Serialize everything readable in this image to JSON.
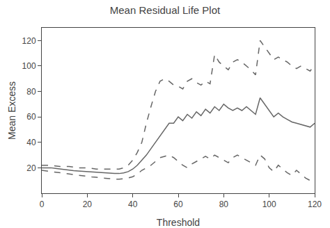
{
  "chart_data": {
    "type": "line",
    "title": "Mean Residual Life Plot",
    "xlabel": "Threshold",
    "ylabel": "Mean Excess",
    "x": [
      0,
      2,
      4,
      6,
      8,
      10,
      12,
      14,
      16,
      18,
      20,
      22,
      24,
      26,
      28,
      30,
      32,
      34,
      36,
      38,
      40,
      42,
      44,
      46,
      48,
      50,
      52,
      54,
      56,
      58,
      60,
      62,
      64,
      66,
      68,
      70,
      72,
      74,
      76,
      78,
      80,
      82,
      84,
      86,
      88,
      90,
      92,
      94,
      96,
      98,
      100,
      102,
      104,
      106,
      108,
      110,
      112,
      114,
      116,
      118,
      120
    ],
    "series": [
      {
        "color": "#666666",
        "line_style": "solid",
        "values": [
          20,
          20,
          20,
          19.5,
          19,
          18.5,
          18,
          17.8,
          17.5,
          17.2,
          17,
          16.8,
          16.5,
          16.3,
          16,
          15.8,
          15.5,
          15.5,
          16,
          17,
          19,
          22,
          26,
          30,
          35,
          40,
          45,
          50,
          55,
          55,
          60,
          57,
          62,
          59,
          64,
          61,
          66,
          63,
          68,
          65,
          70,
          67,
          65,
          67,
          65,
          68,
          65,
          62,
          75,
          70,
          65,
          60,
          63,
          60,
          58,
          56,
          55,
          54,
          53,
          52,
          55
        ]
      },
      {
        "color": "#666666",
        "line_style": "dashed",
        "values": [
          22,
          22,
          22,
          21.5,
          21,
          21,
          21,
          20.5,
          20,
          20,
          20,
          19.5,
          19,
          19,
          19,
          19,
          19,
          19,
          20,
          22,
          26,
          32,
          40,
          55,
          68,
          80,
          88,
          90,
          88,
          85,
          84,
          82,
          88,
          90,
          87,
          85,
          88,
          86,
          109,
          103,
          100,
          97,
          103,
          105,
          103,
          100,
          97,
          93,
          120,
          115,
          110,
          105,
          107,
          105,
          103,
          100,
          98,
          100,
          98,
          96,
          101
        ]
      },
      {
        "color": "#666666",
        "line_style": "dashed",
        "values": [
          18,
          17.5,
          17,
          16.5,
          16,
          15.5,
          15,
          14.5,
          14,
          13.5,
          13,
          12.8,
          12.5,
          12,
          11.8,
          11.5,
          11,
          11,
          11.5,
          12,
          13,
          15,
          18,
          20,
          22,
          25,
          28,
          29,
          30,
          28,
          25,
          22,
          20,
          23,
          25,
          27,
          29,
          27,
          30,
          28,
          26,
          24,
          28,
          30,
          28,
          26,
          24,
          22,
          30,
          27,
          20,
          17,
          22,
          19,
          16,
          14,
          18,
          15,
          12,
          10,
          10
        ]
      }
    ],
    "xlim": [
      0,
      120
    ],
    "ylim": [
      0,
      130
    ],
    "xticks": [
      0,
      20,
      40,
      60,
      80,
      100,
      120
    ],
    "yticks": [
      20,
      40,
      60,
      80,
      100,
      120
    ],
    "grid": false
  }
}
